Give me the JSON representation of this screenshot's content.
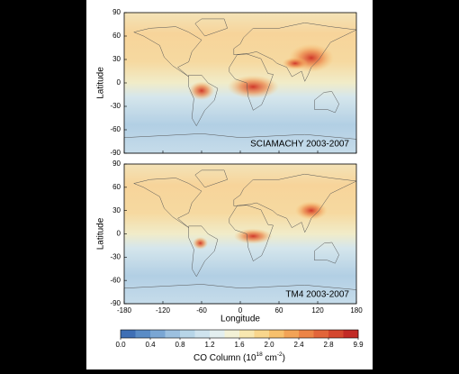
{
  "panels": [
    {
      "label": "SCIAMACHY 2003-2007",
      "ylabel": "Latitude",
      "xlim": [
        -180,
        180
      ],
      "ylim": [
        -90,
        90
      ],
      "yticks": [
        90,
        60,
        30,
        0,
        -30,
        -60,
        -90
      ]
    },
    {
      "label": "TM4 2003-2007",
      "ylabel": "Latitude",
      "xlim": [
        -180,
        180
      ],
      "ylim": [
        -90,
        90
      ],
      "yticks": [
        90,
        60,
        30,
        0,
        -30,
        -60,
        -90
      ]
    }
  ],
  "xaxis": {
    "label": "Longitude",
    "ticks": [
      -180,
      -120,
      -60,
      0,
      60,
      120,
      180
    ]
  },
  "colorbar": {
    "ticks": [
      {
        "value": 0,
        "label": "0.0"
      },
      0.4,
      0.8,
      1.2,
      1.6,
      {
        "value": 2,
        "label": "2.0"
      },
      2.4,
      2.8,
      9.9
    ],
    "colors": [
      "#3f6fb5",
      "#5a8cc6",
      "#7aa6d4",
      "#9cc0e0",
      "#b7d5e8",
      "#cfe3ee",
      "#e3eff0",
      "#f3f1d6",
      "#f8e7b0",
      "#f9d68c",
      "#f7c06c",
      "#f2a356",
      "#ec8446",
      "#e2653a",
      "#d4472e",
      "#c22a25"
    ],
    "label": [
      "CO Column (10",
      "18",
      " cm",
      "-2",
      ")"
    ]
  }
}
